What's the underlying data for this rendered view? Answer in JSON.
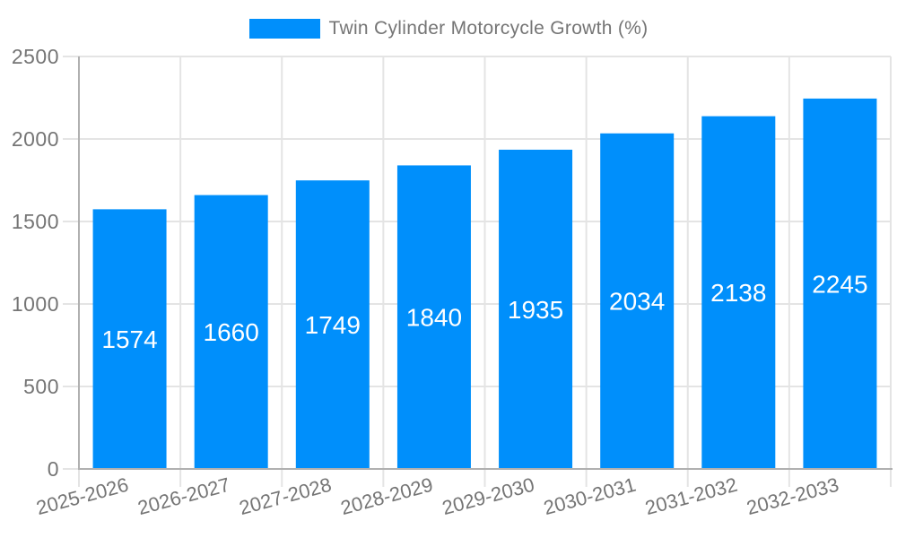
{
  "chart_data": {
    "type": "bar",
    "title": "Twin Cylinder Motorcycle Growth (%)",
    "legend": {
      "position": "top",
      "entries": [
        "Twin Cylinder Motorcycle Growth (%)"
      ]
    },
    "categories": [
      "2025-2026",
      "2026-2027",
      "2027-2028",
      "2028-2029",
      "2029-2030",
      "2030-2031",
      "2031-2032",
      "2032-2033"
    ],
    "series": [
      {
        "name": "Twin Cylinder Motorcycle Growth (%)",
        "values": [
          1574,
          1660,
          1749,
          1840,
          1935,
          2034,
          2138,
          2245
        ],
        "color": "#008ffb"
      }
    ],
    "bar_value_labels": [
      "1574",
      "1660",
      "1749",
      "1840",
      "1935",
      "2034",
      "2138",
      "2245"
    ],
    "xlabel": "",
    "ylabel": "",
    "ylim": [
      0,
      2500
    ],
    "yticks": [
      0,
      500,
      1000,
      1500,
      2000,
      2500
    ],
    "x_tick_rotation_deg": -15,
    "grid": {
      "horizontal": true,
      "vertical": true
    },
    "colors": {
      "bar": "#008ffb",
      "grid": "#e4e4e4",
      "axis": "#b0b0b0",
      "tick_label": "#757575",
      "legend_label": "#757575",
      "bar_label": "#ffffff",
      "background": "#ffffff"
    }
  }
}
